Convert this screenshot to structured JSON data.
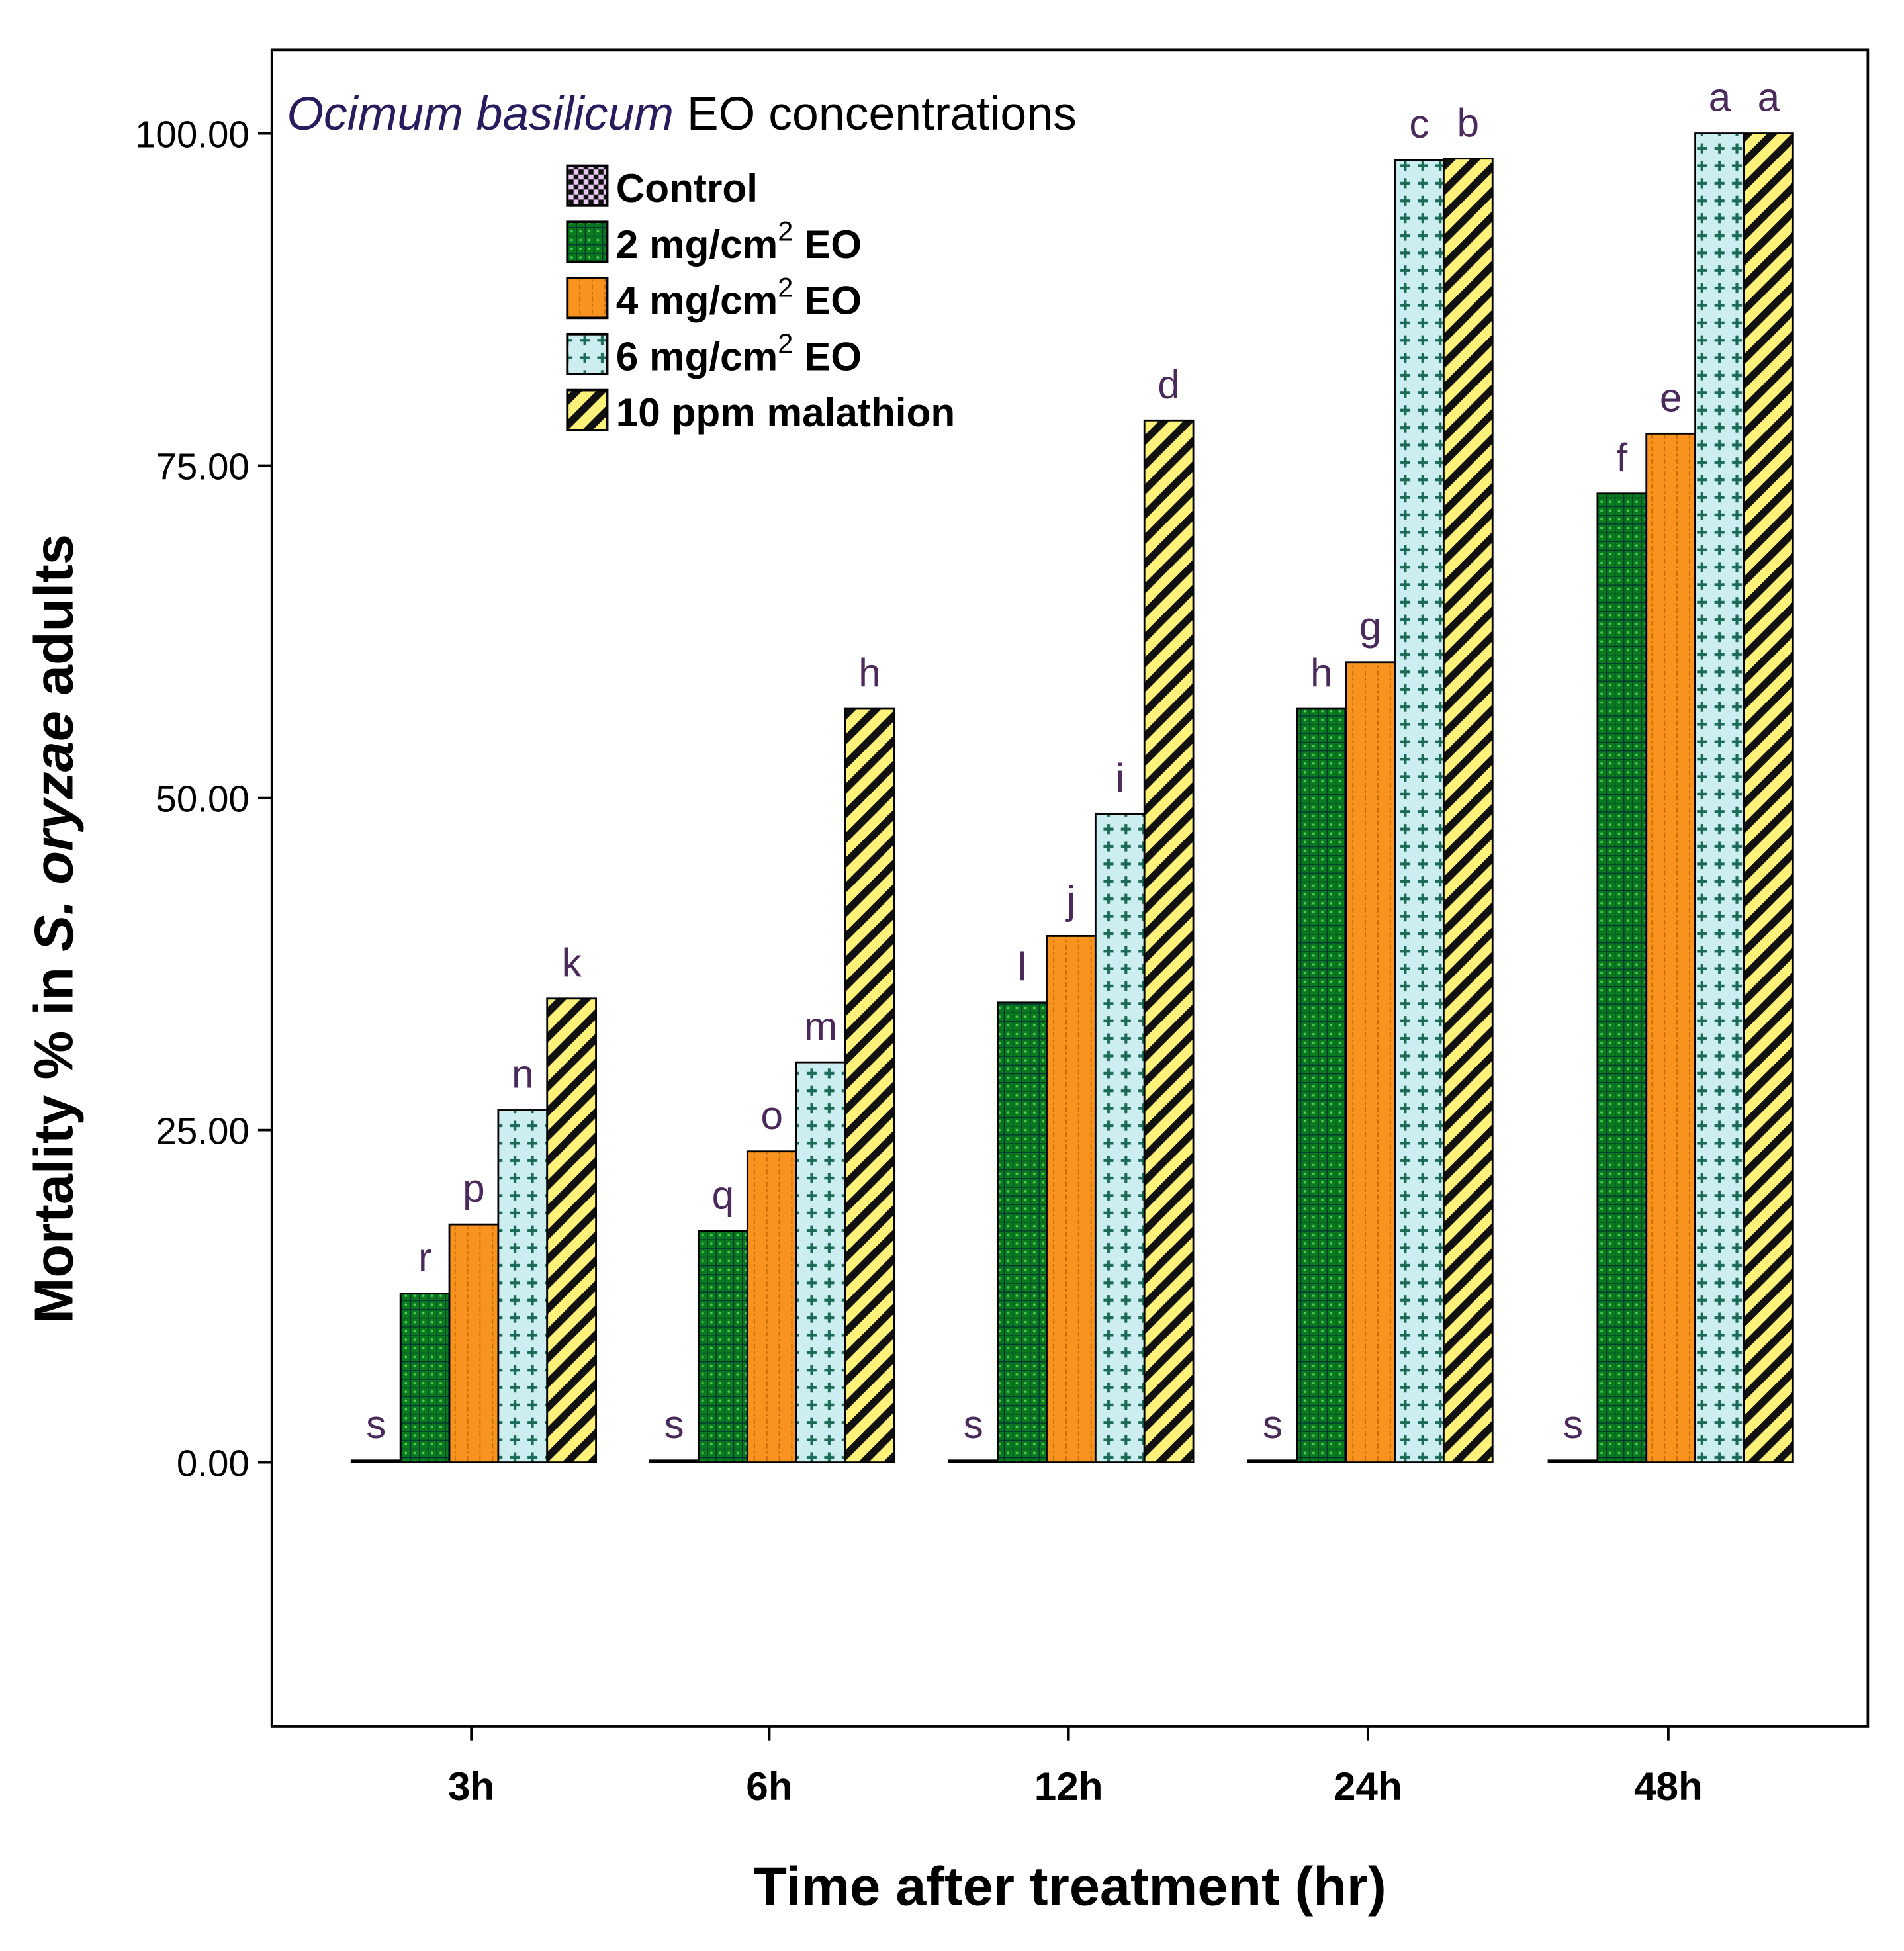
{
  "chart_data": {
    "type": "bar",
    "title": "",
    "legend_title_italic": "Ocimum basilicum",
    "legend_title_rest": "EO concentrations",
    "xlabel": "Time after treatment (hr)",
    "ylabel_pre": "Mortality % in ",
    "ylabel_italic": "S. oryzae",
    "ylabel_post": " adults",
    "ylim": [
      -20,
      106
    ],
    "yticks": [
      0,
      25,
      50,
      75,
      100
    ],
    "ytick_labels": [
      "0.00",
      "25.00",
      "50.00",
      "75.00",
      "100.00"
    ],
    "categories": [
      "3h",
      "6h",
      "12h",
      "24h",
      "48h"
    ],
    "legend_position": "top-left",
    "series": [
      {
        "name": "Control",
        "sup": "",
        "color": "#e8c8f0",
        "pattern": "checker",
        "values": [
          0,
          0,
          0,
          0,
          0
        ],
        "letters": [
          "s",
          "s",
          "s",
          "s",
          "s"
        ]
      },
      {
        "name": "2 mg/cm",
        "sup": "2",
        "suffix": " EO",
        "color": "#0a7a1e",
        "pattern": "grid",
        "values": [
          12.7,
          17.4,
          34.6,
          56.7,
          72.9
        ],
        "letters": [
          "r",
          "q",
          "l",
          "h",
          "f"
        ]
      },
      {
        "name": "4 mg/cm",
        "sup": "2",
        "suffix": " EO",
        "color": "#f7931e",
        "pattern": "dots",
        "values": [
          17.9,
          23.4,
          39.6,
          60.2,
          77.4
        ],
        "letters": [
          "p",
          "o",
          "j",
          "g",
          "e"
        ]
      },
      {
        "name": "6 mg/cm",
        "sup": "2",
        "suffix": " EO",
        "color": "#cdeef0",
        "pattern": "plus",
        "values": [
          26.5,
          30.1,
          48.8,
          98.0,
          100.0
        ],
        "letters": [
          "n",
          "m",
          "i",
          "c",
          "a"
        ]
      },
      {
        "name": "10 ppm malathion",
        "sup": "",
        "suffix": "",
        "color": "#fff27a",
        "pattern": "diag",
        "values": [
          34.9,
          56.7,
          78.4,
          98.1,
          100.0
        ],
        "letters": [
          "k",
          "h",
          "d",
          "b",
          "a"
        ]
      }
    ]
  }
}
